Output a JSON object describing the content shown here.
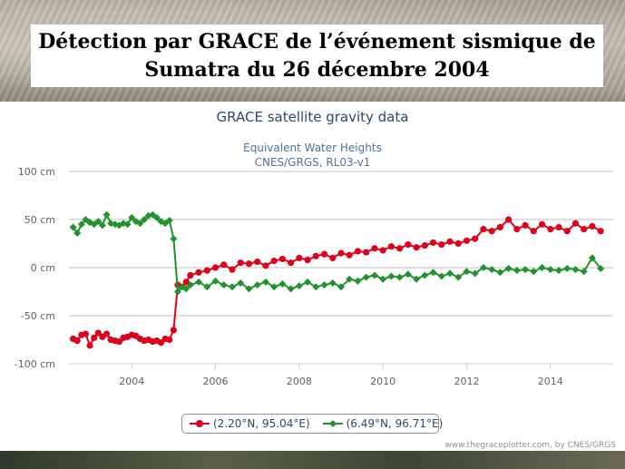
{
  "slide": {
    "title_line1": "Détection par GRACE de l’événement sismique de",
    "title_line2": "Sumatra du 26 décembre 2004"
  },
  "chart_data": {
    "type": "line",
    "title": "GRACE satellite gravity data",
    "subtitle_line1": "Equivalent Water Heights",
    "subtitle_line2": "CNES/GRGS, RL03-v1",
    "ylim": [
      -100,
      100
    ],
    "y_ticks": [
      "100 cm",
      "50 cm",
      "0 cm",
      "-50 cm",
      "-100 cm"
    ],
    "y_tick_values": [
      100,
      50,
      0,
      -50,
      -100
    ],
    "xlim": [
      2002.5,
      2015.5
    ],
    "x_ticks": [
      "2004",
      "2006",
      "2008",
      "2010",
      "2012",
      "2014"
    ],
    "x_tick_values": [
      2004,
      2006,
      2008,
      2010,
      2012,
      2014
    ],
    "grid": "horizontal",
    "legend_position": "bottom-center",
    "series": [
      {
        "name": "(2.20°N, 95.04°E)",
        "color": "#e0001a",
        "marker": "circle",
        "x": [
          2002.6,
          2002.7,
          2002.8,
          2002.9,
          2003.0,
          2003.1,
          2003.2,
          2003.3,
          2003.4,
          2003.5,
          2003.6,
          2003.7,
          2003.8,
          2003.9,
          2004.0,
          2004.1,
          2004.2,
          2004.3,
          2004.4,
          2004.5,
          2004.6,
          2004.7,
          2004.8,
          2004.9,
          2005.0,
          2005.1,
          2005.2,
          2005.3,
          2005.4,
          2005.6,
          2005.8,
          2006.0,
          2006.2,
          2006.4,
          2006.6,
          2006.8,
          2007.0,
          2007.2,
          2007.4,
          2007.6,
          2007.8,
          2008.0,
          2008.2,
          2008.4,
          2008.6,
          2008.8,
          2009.0,
          2009.2,
          2009.4,
          2009.6,
          2009.8,
          2010.0,
          2010.2,
          2010.4,
          2010.6,
          2010.8,
          2011.0,
          2011.2,
          2011.4,
          2011.6,
          2011.8,
          2012.0,
          2012.2,
          2012.4,
          2012.6,
          2012.8,
          2013.0,
          2013.2,
          2013.4,
          2013.6,
          2013.8,
          2014.0,
          2014.2,
          2014.4,
          2014.6,
          2014.8,
          2015.0,
          2015.2
        ],
        "values": [
          -74,
          -76,
          -70,
          -69,
          -81,
          -73,
          -68,
          -72,
          -69,
          -75,
          -76,
          -77,
          -73,
          -72,
          -70,
          -71,
          -74,
          -76,
          -75,
          -77,
          -76,
          -78,
          -74,
          -75,
          -65,
          -18,
          -20,
          -15,
          -8,
          -5,
          -3,
          0,
          3,
          -2,
          5,
          4,
          6,
          2,
          7,
          9,
          5,
          10,
          8,
          12,
          14,
          10,
          15,
          13,
          17,
          16,
          20,
          18,
          22,
          20,
          24,
          21,
          23,
          26,
          24,
          27,
          25,
          28,
          30,
          40,
          38,
          42,
          50,
          40,
          44,
          38,
          45,
          40,
          42,
          38,
          46,
          40,
          43,
          38
        ]
      },
      {
        "name": "(6.49°N, 96.71°E)",
        "color": "#21922e",
        "marker": "diamond",
        "x": [
          2002.6,
          2002.7,
          2002.8,
          2002.9,
          2003.0,
          2003.1,
          2003.2,
          2003.3,
          2003.4,
          2003.5,
          2003.6,
          2003.7,
          2003.8,
          2003.9,
          2004.0,
          2004.1,
          2004.2,
          2004.3,
          2004.4,
          2004.5,
          2004.6,
          2004.7,
          2004.8,
          2004.9,
          2005.0,
          2005.1,
          2005.2,
          2005.3,
          2005.4,
          2005.6,
          2005.8,
          2006.0,
          2006.2,
          2006.4,
          2006.6,
          2006.8,
          2007.0,
          2007.2,
          2007.4,
          2007.6,
          2007.8,
          2008.0,
          2008.2,
          2008.4,
          2008.6,
          2008.8,
          2009.0,
          2009.2,
          2009.4,
          2009.6,
          2009.8,
          2010.0,
          2010.2,
          2010.4,
          2010.6,
          2010.8,
          2011.0,
          2011.2,
          2011.4,
          2011.6,
          2011.8,
          2012.0,
          2012.2,
          2012.4,
          2012.6,
          2012.8,
          2013.0,
          2013.2,
          2013.4,
          2013.6,
          2013.8,
          2014.0,
          2014.2,
          2014.4,
          2014.6,
          2014.8,
          2015.0,
          2015.2
        ],
        "values": [
          42,
          36,
          45,
          50,
          47,
          45,
          48,
          44,
          55,
          46,
          45,
          44,
          46,
          45,
          52,
          48,
          46,
          50,
          54,
          55,
          52,
          48,
          46,
          49,
          30,
          -25,
          -20,
          -22,
          -18,
          -15,
          -20,
          -14,
          -18,
          -20,
          -16,
          -22,
          -18,
          -15,
          -20,
          -17,
          -22,
          -19,
          -15,
          -20,
          -18,
          -16,
          -20,
          -12,
          -14,
          -10,
          -8,
          -12,
          -9,
          -10,
          -7,
          -12,
          -8,
          -5,
          -9,
          -6,
          -10,
          -4,
          -6,
          0,
          -2,
          -5,
          -1,
          -3,
          -2,
          -4,
          0,
          -2,
          -3,
          -1,
          -2,
          -4,
          10,
          -1
        ]
      }
    ]
  },
  "credits": "www.thegraceplotter.com, by CNES/GRGS"
}
